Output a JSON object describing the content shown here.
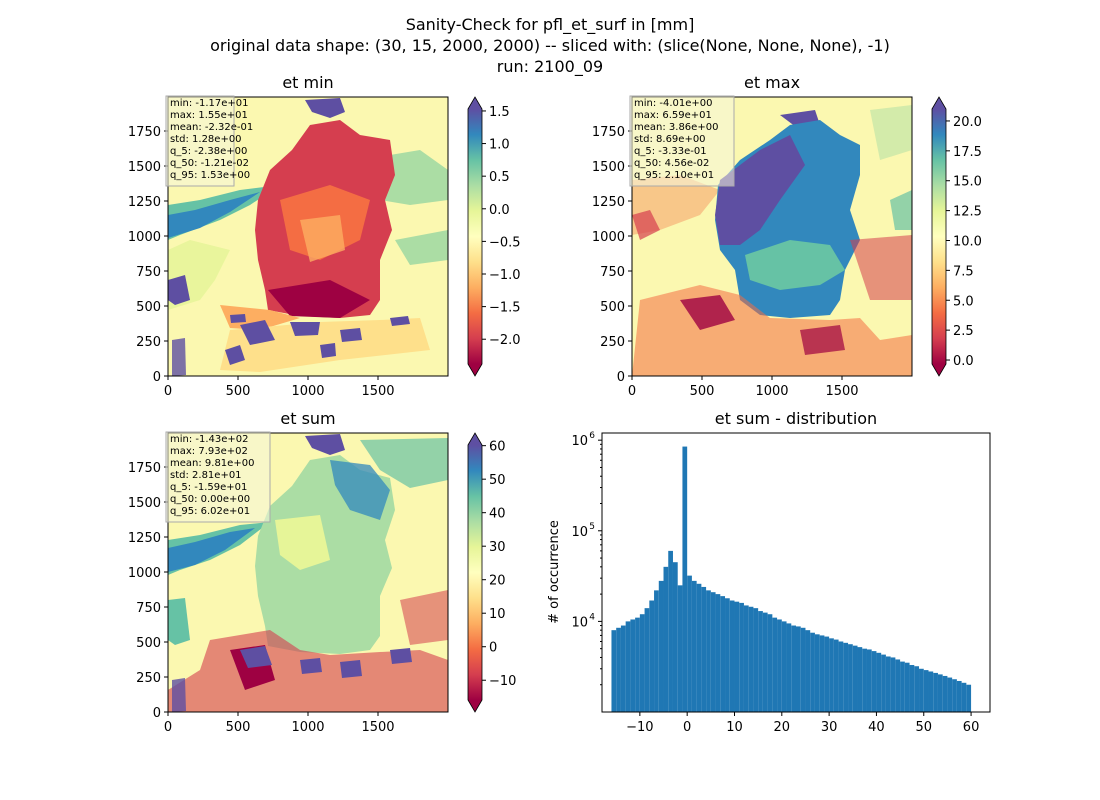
{
  "figure": {
    "title_lines": [
      "Sanity-Check for pfl_et_surf in [mm]",
      "original data shape: (30, 15, 2000, 2000) -- sliced with: (slice(None, None, None), -1)",
      "run: 2100_09"
    ]
  },
  "chart_data": [
    {
      "type": "heatmap",
      "title": "et min",
      "xticks": [
        "0",
        "500",
        "1000",
        "1500"
      ],
      "yticks": [
        "0",
        "250",
        "500",
        "750",
        "1000",
        "1250",
        "1500",
        "1750"
      ],
      "xlim": [
        0,
        2000
      ],
      "ylim": [
        0,
        2000
      ],
      "colorbar_ticks": [
        "1.5",
        "1.0",
        "0.5",
        "0.0",
        "−0.5",
        "−1.0",
        "−1.5",
        "−2.0"
      ],
      "colorbar_values": [
        1.5,
        1.0,
        0.5,
        0.0,
        -0.5,
        -1.0,
        -1.5,
        -2.0
      ],
      "colorbar_range": [
        -2.38,
        1.53
      ],
      "colorbar_extend": "both",
      "colormap": "Spectral",
      "stats": [
        "min: -1.17e+01",
        "max: 1.55e+01",
        "mean: -2.32e-01",
        "std: 1.28e+00",
        "q_5: -2.38e+00",
        "q_50: -1.21e-02",
        "q_95: 1.53e+00"
      ]
    },
    {
      "type": "heatmap",
      "title": "et max",
      "xticks": [
        "0",
        "500",
        "1000",
        "1500"
      ],
      "yticks": [
        "0",
        "250",
        "500",
        "750",
        "1000",
        "1250",
        "1500",
        "1750"
      ],
      "xlim": [
        0,
        2000
      ],
      "ylim": [
        0,
        2000
      ],
      "colorbar_ticks": [
        "20.0",
        "17.5",
        "15.0",
        "12.5",
        "10.0",
        "7.5",
        "5.0",
        "2.5",
        "0.0"
      ],
      "colorbar_values": [
        20.0,
        17.5,
        15.0,
        12.5,
        10.0,
        7.5,
        5.0,
        2.5,
        0.0
      ],
      "colorbar_range": [
        -0.333,
        21.0
      ],
      "colorbar_extend": "both",
      "colormap": "Spectral",
      "stats": [
        "min: -4.01e+00",
        "max: 6.59e+01",
        "mean: 3.86e+00",
        "std: 8.69e+00",
        "q_5: -3.33e-01",
        "q_50: 4.56e-02",
        "q_95: 2.10e+01"
      ]
    },
    {
      "type": "heatmap",
      "title": "et sum",
      "xticks": [
        "0",
        "500",
        "1000",
        "1500"
      ],
      "yticks": [
        "0",
        "250",
        "500",
        "750",
        "1000",
        "1250",
        "1500",
        "1750"
      ],
      "xlim": [
        0,
        2000
      ],
      "ylim": [
        0,
        2000
      ],
      "colorbar_ticks": [
        "60",
        "50",
        "40",
        "30",
        "20",
        "10",
        "0",
        "−10"
      ],
      "colorbar_values": [
        60,
        50,
        40,
        30,
        20,
        10,
        0,
        -10
      ],
      "colorbar_range": [
        -15.9,
        60.2
      ],
      "colorbar_extend": "both",
      "colormap": "Spectral",
      "stats": [
        "min: -1.43e+02",
        "max: 7.93e+02",
        "mean: 9.81e+00",
        "std: 2.81e+01",
        "q_5: -1.59e+01",
        "q_50: 0.00e+00",
        "q_95: 6.02e+01"
      ]
    },
    {
      "type": "bar",
      "title": "et sum - distribution",
      "ylabel": "# of occurrence",
      "xlabel": "",
      "yscale": "log",
      "xlim": [
        -18,
        64
      ],
      "ylim": [
        1000,
        1200000
      ],
      "xticks": [
        -10,
        0,
        10,
        20,
        30,
        40,
        50,
        60
      ],
      "xtick_labels": [
        "−10",
        "0",
        "10",
        "20",
        "30",
        "40",
        "50",
        "60"
      ],
      "yticks": [
        10000,
        100000,
        1000000
      ],
      "ytick_labels": [
        "10",
        "10",
        "10"
      ],
      "ytick_exponents": [
        "4",
        "5",
        "6"
      ],
      "bar_color": "#1f77b4",
      "x": [
        -15.5,
        -14.5,
        -13.5,
        -12.5,
        -11.5,
        -10.5,
        -9.5,
        -8.5,
        -7.5,
        -6.5,
        -5.5,
        -4.5,
        -3.5,
        -2.5,
        -1.5,
        -0.5,
        0.5,
        1.5,
        2.5,
        3.5,
        4.5,
        5.5,
        6.5,
        7.5,
        8.5,
        9.5,
        10.5,
        11.5,
        12.5,
        13.5,
        14.5,
        15.5,
        16.5,
        17.5,
        18.5,
        19.5,
        20.5,
        21.5,
        22.5,
        23.5,
        24.5,
        25.5,
        26.5,
        27.5,
        28.5,
        29.5,
        30.5,
        31.5,
        32.5,
        33.5,
        34.5,
        35.5,
        36.5,
        37.5,
        38.5,
        39.5,
        40.5,
        41.5,
        42.5,
        43.5,
        44.5,
        45.5,
        46.5,
        47.5,
        48.5,
        49.5,
        50.5,
        51.5,
        52.5,
        53.5,
        54.5,
        55.5,
        56.5,
        57.5,
        58.5,
        59.5
      ],
      "values": [
        8000,
        8500,
        9000,
        10000,
        10500,
        11000,
        12000,
        14000,
        17000,
        22000,
        28000,
        40000,
        60000,
        45000,
        25000,
        850000,
        32000,
        28000,
        26000,
        24000,
        22000,
        21000,
        20000,
        19000,
        18000,
        17000,
        16500,
        16000,
        15000,
        14500,
        14000,
        13000,
        12500,
        12000,
        11000,
        10500,
        10000,
        9500,
        9000,
        8800,
        8500,
        8000,
        7500,
        7200,
        7000,
        6800,
        6500,
        6300,
        6000,
        5800,
        5600,
        5400,
        5200,
        5000,
        4900,
        4700,
        4500,
        4300,
        4100,
        4000,
        3800,
        3600,
        3500,
        3300,
        3200,
        3000,
        2900,
        2800,
        2700,
        2600,
        2500,
        2400,
        2300,
        2200,
        2100,
        2000
      ]
    }
  ]
}
